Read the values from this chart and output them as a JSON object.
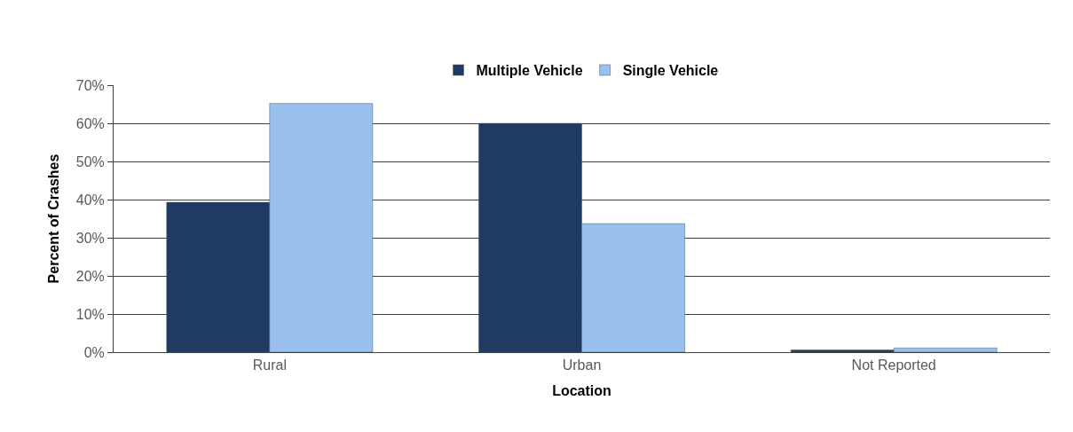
{
  "chart_data": {
    "type": "bar",
    "xlabel": "Location",
    "ylabel": "Percent of Crashes",
    "categories": [
      "Rural",
      "Urban",
      "Not Reported"
    ],
    "series": [
      {
        "name": "Multiple Vehicle",
        "color": "#1f3b63",
        "values": [
          39.3,
          60.0,
          0.6
        ]
      },
      {
        "name": "Single Vehicle",
        "color": "#99c0ef",
        "values": [
          65.2,
          33.7,
          1.1
        ]
      }
    ],
    "ylim": [
      0,
      70
    ],
    "yticks": [
      {
        "value": 0,
        "label": "0%"
      },
      {
        "value": 10,
        "label": "10%"
      },
      {
        "value": 20,
        "label": "20%"
      },
      {
        "value": 30,
        "label": "30%"
      },
      {
        "value": 40,
        "label": "40%"
      },
      {
        "value": 50,
        "label": "50%"
      },
      {
        "value": 60,
        "label": "60%"
      },
      {
        "value": 70,
        "label": "70%"
      }
    ],
    "grid": "y",
    "legend": "top"
  }
}
